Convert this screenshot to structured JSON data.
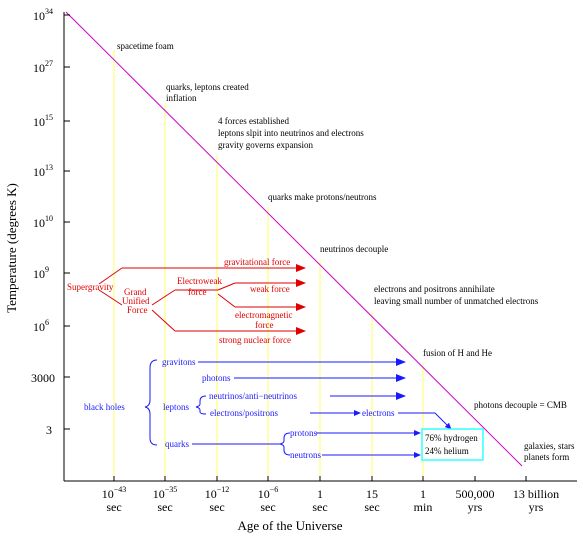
{
  "axes": {
    "y_title": "Temperature (degrees K)",
    "x_title": "Age of the Universe",
    "y_ticks": [
      {
        "base": "10",
        "exp": "34"
      },
      {
        "base": "10",
        "exp": "27"
      },
      {
        "base": "10",
        "exp": "15"
      },
      {
        "base": "10",
        "exp": "13"
      },
      {
        "base": "10",
        "exp": "10"
      },
      {
        "base": "10",
        "exp": "9"
      },
      {
        "base": "10",
        "exp": "6"
      },
      {
        "base": "3000",
        "exp": ""
      },
      {
        "base": "3",
        "exp": ""
      }
    ],
    "x_ticks": [
      {
        "main": "10",
        "exp": "−43",
        "unit": "sec"
      },
      {
        "main": "10",
        "exp": "−35",
        "unit": "sec"
      },
      {
        "main": "10",
        "exp": "−12",
        "unit": "sec"
      },
      {
        "main": "10",
        "exp": "−6",
        "unit": "sec"
      },
      {
        "main": "1",
        "exp": "",
        "unit": "sec"
      },
      {
        "main": "15",
        "exp": "",
        "unit": "sec"
      },
      {
        "main": "1",
        "exp": "",
        "unit": "min"
      },
      {
        "main": "500,000",
        "exp": "",
        "unit": "yrs"
      },
      {
        "main": "13 billion",
        "exp": "",
        "unit": "yrs"
      }
    ]
  },
  "events": {
    "e1": "spacetime foam",
    "e2a": "quarks, leptons created",
    "e2b": "inflation",
    "e3a": "4 forces established",
    "e3b": "leptons slpit into neutrinos and electrons",
    "e3c": "gravity governs expansion",
    "e4": "quarks make protons/neutrons",
    "e5": "neutrinos decouple",
    "e6a": "electrons and positrons annihilate",
    "e6b": "leaving small number of unmatched electrons",
    "e7": "fusion of H and He",
    "e8": "photons decouple = CMB",
    "e9a": "galaxies, stars",
    "e9b": "planets form"
  },
  "forces": {
    "supergravity": "Supergravity",
    "guf1": "Grand",
    "guf2": "Unified",
    "guf3": "Force",
    "ew1": "Electroweak",
    "ew2": "force",
    "gravitational": "gravitational force",
    "weak": "weak force",
    "em1": "electromagnetic",
    "em2": "force",
    "strong": "strong nuclear force"
  },
  "particles": {
    "black_holes": "black holes",
    "gravitons": "gravitons",
    "photons": "photons",
    "leptons": "leptons",
    "neutrinos": "neutrinos/anti−neutrinos",
    "electrons_positrons": "electrons/positrons",
    "electrons": "electrons",
    "quarks": "quarks",
    "protons": "protons",
    "neutrons": "neutrons",
    "h_fraction": "76% hydrogen",
    "he_fraction": "24% helium"
  },
  "colors": {
    "diagonal": "#cc00cc",
    "guides": "#ffff66",
    "forces": "#e00000",
    "particles": "#1a1aff",
    "box": "#33ffff"
  }
}
